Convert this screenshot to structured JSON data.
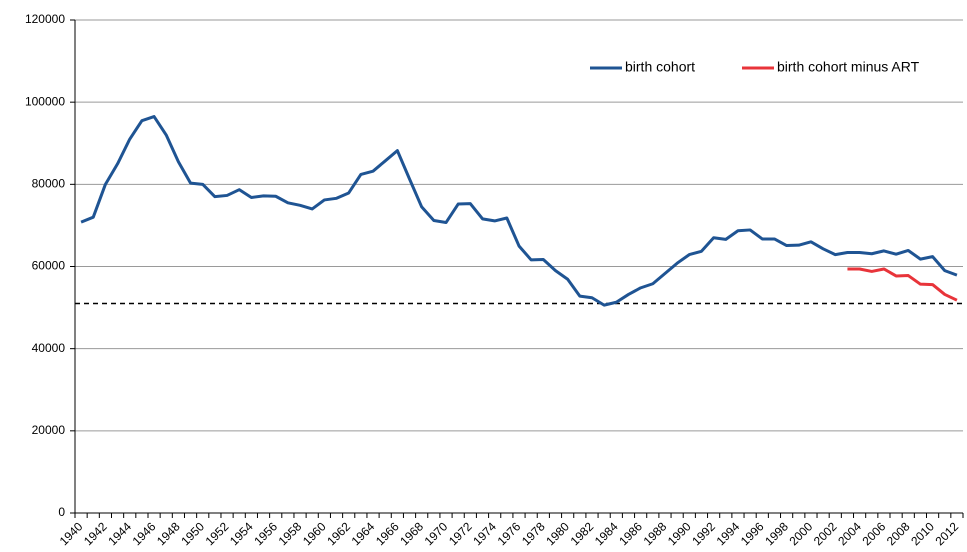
{
  "chart_data": {
    "type": "line",
    "categories": [
      "1940",
      null,
      "1942",
      null,
      "1944",
      null,
      "1946",
      null,
      "1948",
      null,
      "1950",
      null,
      "1952",
      null,
      "1954",
      null,
      "1956",
      null,
      "1958",
      null,
      "1960",
      null,
      "1962",
      null,
      "1964",
      null,
      "1966",
      null,
      "1968",
      null,
      "1970",
      null,
      "1972",
      null,
      "1974",
      null,
      "1976",
      null,
      "1978",
      null,
      "1980",
      null,
      "1982",
      null,
      "1984",
      null,
      "1986",
      null,
      "1988",
      null,
      "1990",
      null,
      "1992",
      null,
      "1994",
      null,
      "1996",
      null,
      "1998",
      null,
      "2000",
      null,
      "2002",
      null,
      "2004",
      null,
      "2006",
      null,
      "2008",
      null,
      "2010",
      null,
      "2012"
    ],
    "series": [
      {
        "name": "birth cohort",
        "color": "#1f5493",
        "values": [
          70800,
          72000,
          80000,
          85000,
          91000,
          95500,
          96500,
          92000,
          85500,
          80300,
          80000,
          77000,
          77300,
          78700,
          76800,
          77200,
          77100,
          75500,
          74900,
          74000,
          76200,
          76600,
          77900,
          82400,
          83200,
          85700,
          88200,
          81300,
          74500,
          71200,
          70700,
          75200,
          75300,
          71600,
          71100,
          71800,
          65000,
          61600,
          61700,
          59000,
          56900,
          52800,
          52400,
          50600,
          51300,
          53200,
          54800,
          55800,
          58300,
          60800,
          62900,
          63700,
          67000,
          66600,
          68700,
          68900,
          66700,
          66700,
          65100,
          65200,
          66000,
          64300,
          62900,
          63400,
          63400,
          63100,
          63800,
          63000,
          63900,
          61800,
          62400,
          59000,
          57900
        ]
      },
      {
        "name": "birth cohort minus ART",
        "color": "#e8343a",
        "values": [
          null,
          null,
          null,
          null,
          null,
          null,
          null,
          null,
          null,
          null,
          null,
          null,
          null,
          null,
          null,
          null,
          null,
          null,
          null,
          null,
          null,
          null,
          null,
          null,
          null,
          null,
          null,
          null,
          null,
          null,
          null,
          null,
          null,
          null,
          null,
          null,
          null,
          null,
          null,
          null,
          null,
          null,
          null,
          null,
          null,
          null,
          null,
          null,
          null,
          null,
          null,
          null,
          null,
          null,
          null,
          null,
          null,
          null,
          null,
          null,
          null,
          null,
          null,
          59400,
          59400,
          58800,
          59400,
          57700,
          57800,
          55700,
          55600,
          53200,
          51800
        ]
      }
    ],
    "reference_line": 51000,
    "ylim": [
      0,
      120000
    ],
    "yticks": [
      0,
      20000,
      40000,
      60000,
      80000,
      100000,
      120000
    ],
    "grid": true,
    "legend": "top-right"
  }
}
